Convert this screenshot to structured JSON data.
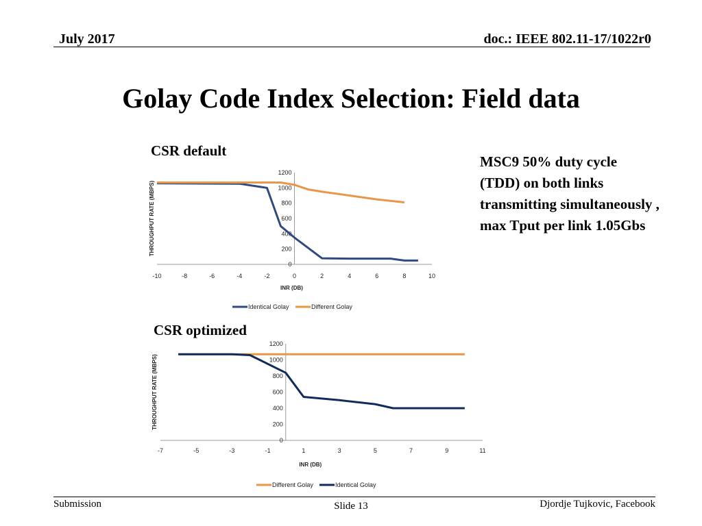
{
  "header": {
    "date": "July 2017",
    "doc": "doc.: IEEE 802.11-17/1022r0"
  },
  "title": "Golay Code Index Selection: Field data",
  "chart1_heading": "CSR default",
  "chart2_heading": "CSR optimized",
  "note": "MSC9 50% duty cycle (TDD) on both links transmitting simultaneously , max Tput per link 1.05Gbs",
  "footer": {
    "left": "Submission",
    "center": "Slide 13",
    "right": "Djordje Tujkovic, Facebook"
  },
  "colors": {
    "identical": "#2f4a80",
    "different": "#e8964a"
  },
  "chart_data": [
    {
      "type": "line",
      "title": "",
      "xlabel": "INR (DB)",
      "ylabel": "THROUGHPUT RATE  (MBPS)",
      "xlim": [
        -10,
        10
      ],
      "ylim": [
        0,
        1200
      ],
      "x_ticks": [
        -10,
        -8,
        -6,
        -4,
        -2,
        0,
        2,
        4,
        6,
        8,
        10
      ],
      "y_ticks": [
        0,
        200,
        400,
        600,
        800,
        1000,
        1200
      ],
      "legend_position": "bottom",
      "series": [
        {
          "name": "Identical Golay",
          "color": "#2f4a80",
          "x": [
            -10,
            -4,
            -2,
            -1,
            0,
            2,
            4,
            7,
            8,
            9
          ],
          "values": [
            1060,
            1055,
            1000,
            500,
            350,
            80,
            75,
            75,
            50,
            50
          ]
        },
        {
          "name": "Different Golay",
          "color": "#e8964a",
          "x": [
            -10,
            -1,
            0,
            1,
            2,
            4,
            6,
            8
          ],
          "values": [
            1070,
            1070,
            1040,
            980,
            950,
            900,
            850,
            810
          ]
        }
      ]
    },
    {
      "type": "line",
      "title": "",
      "xlabel": "INR (DB)",
      "ylabel": "THROUGHPUT RATE  (MBPS)",
      "xlim": [
        -7,
        11
      ],
      "ylim": [
        0,
        1200
      ],
      "x_ticks": [
        -7,
        -5,
        -3,
        -1,
        1,
        3,
        5,
        7,
        9,
        11
      ],
      "y_ticks": [
        0,
        200,
        400,
        600,
        800,
        1000,
        1200
      ],
      "legend_position": "bottom",
      "series": [
        {
          "name": "Different Golay",
          "color": "#e8964a",
          "x": [
            -6,
            10
          ],
          "values": [
            1070,
            1070
          ]
        },
        {
          "name": "Identical Golay",
          "color": "#0f2b5c",
          "x": [
            -6,
            -3,
            -2,
            0,
            1,
            3,
            5,
            6,
            8,
            10
          ],
          "values": [
            1070,
            1070,
            1060,
            840,
            540,
            500,
            450,
            400,
            400,
            400
          ]
        }
      ]
    }
  ]
}
